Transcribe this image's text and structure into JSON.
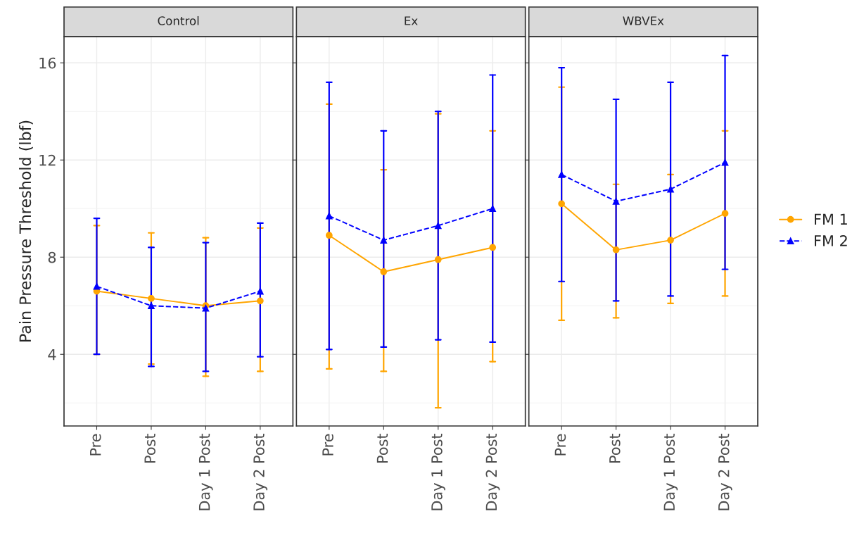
{
  "chart_data": [
    {
      "type": "line",
      "title": "Control",
      "ylabel": "Pain Pressure Threshold (lbf)",
      "categories": [
        "Pre",
        "Post",
        "Day 1 Post",
        "Day 2 Post"
      ],
      "ylim": [
        1.05,
        17.08
      ],
      "yticks": [
        {
          "value": 2,
          "label": null
        },
        4,
        {
          "value": 6,
          "label": null
        },
        8,
        {
          "value": 10,
          "label": null
        },
        12,
        {
          "value": 14,
          "label": null
        },
        16
      ],
      "grid": true,
      "legend": "right",
      "series": [
        {
          "name": "FM 1",
          "color": "#ffa500",
          "marker": "circle",
          "line_style": "solid",
          "values": [
            6.6,
            6.3,
            6.0,
            6.2
          ],
          "errors": [
            [
              4.0,
              9.3
            ],
            [
              3.6,
              9.0
            ],
            [
              3.1,
              8.8
            ],
            [
              3.3,
              9.2
            ]
          ]
        },
        {
          "name": "FM 2",
          "color": "#0000ff",
          "marker": "triangle",
          "line_style": "dashed",
          "values": [
            6.8,
            6.0,
            5.9,
            6.6
          ],
          "errors": [
            [
              4.0,
              9.6
            ],
            [
              3.5,
              8.4
            ],
            [
              3.3,
              8.6
            ],
            [
              3.9,
              9.4
            ]
          ]
        }
      ]
    },
    {
      "type": "line",
      "title": "Ex",
      "categories": [
        "Pre",
        "Post",
        "Day 1 Post",
        "Day 2 Post"
      ],
      "ylim": [
        1.05,
        17.08
      ],
      "yticks": [
        {
          "value": 2,
          "label": null
        },
        4,
        {
          "value": 6,
          "label": null
        },
        8,
        {
          "value": 10,
          "label": null
        },
        12,
        {
          "value": 14,
          "label": null
        },
        16
      ],
      "grid": true,
      "tick_labels": "x",
      "series": [
        {
          "color": "#ffa500",
          "marker": "circle",
          "line_style": "solid",
          "values": [
            8.9,
            7.4,
            7.9,
            8.4
          ],
          "errors": [
            [
              3.4,
              14.3
            ],
            [
              3.3,
              11.6
            ],
            [
              1.8,
              13.9
            ],
            [
              3.7,
              13.2
            ]
          ]
        },
        {
          "color": "#0000ff",
          "marker": "triangle",
          "line_style": "dashed",
          "values": [
            9.7,
            8.7,
            9.3,
            10.0
          ],
          "errors": [
            [
              4.2,
              15.2
            ],
            [
              4.3,
              13.2
            ],
            [
              4.6,
              14.0
            ],
            [
              4.5,
              15.5
            ]
          ]
        }
      ]
    },
    {
      "type": "line",
      "title": "WBVEx",
      "categories": [
        "Pre",
        "Post",
        "Day 1 Post",
        "Day 2 Post"
      ],
      "ylim": [
        1.05,
        17.08
      ],
      "yticks": [
        {
          "value": 2,
          "label": null
        },
        4,
        {
          "value": 6,
          "label": null
        },
        8,
        {
          "value": 10,
          "label": null
        },
        12,
        {
          "value": 14,
          "label": null
        },
        16
      ],
      "grid": true,
      "tick_labels": "x",
      "series": [
        {
          "color": "#ffa500",
          "marker": "circle",
          "line_style": "solid",
          "values": [
            10.2,
            8.3,
            8.7,
            9.8
          ],
          "errors": [
            [
              5.4,
              15.0
            ],
            [
              5.5,
              11.0
            ],
            [
              6.1,
              11.4
            ],
            [
              6.4,
              13.2
            ]
          ]
        },
        {
          "color": "#0000ff",
          "marker": "triangle",
          "line_style": "dashed",
          "values": [
            11.4,
            10.3,
            10.8,
            11.9
          ],
          "errors": [
            [
              7.0,
              15.8
            ],
            [
              6.2,
              14.5
            ],
            [
              6.4,
              15.2
            ],
            [
              7.5,
              16.3
            ]
          ]
        }
      ]
    }
  ]
}
